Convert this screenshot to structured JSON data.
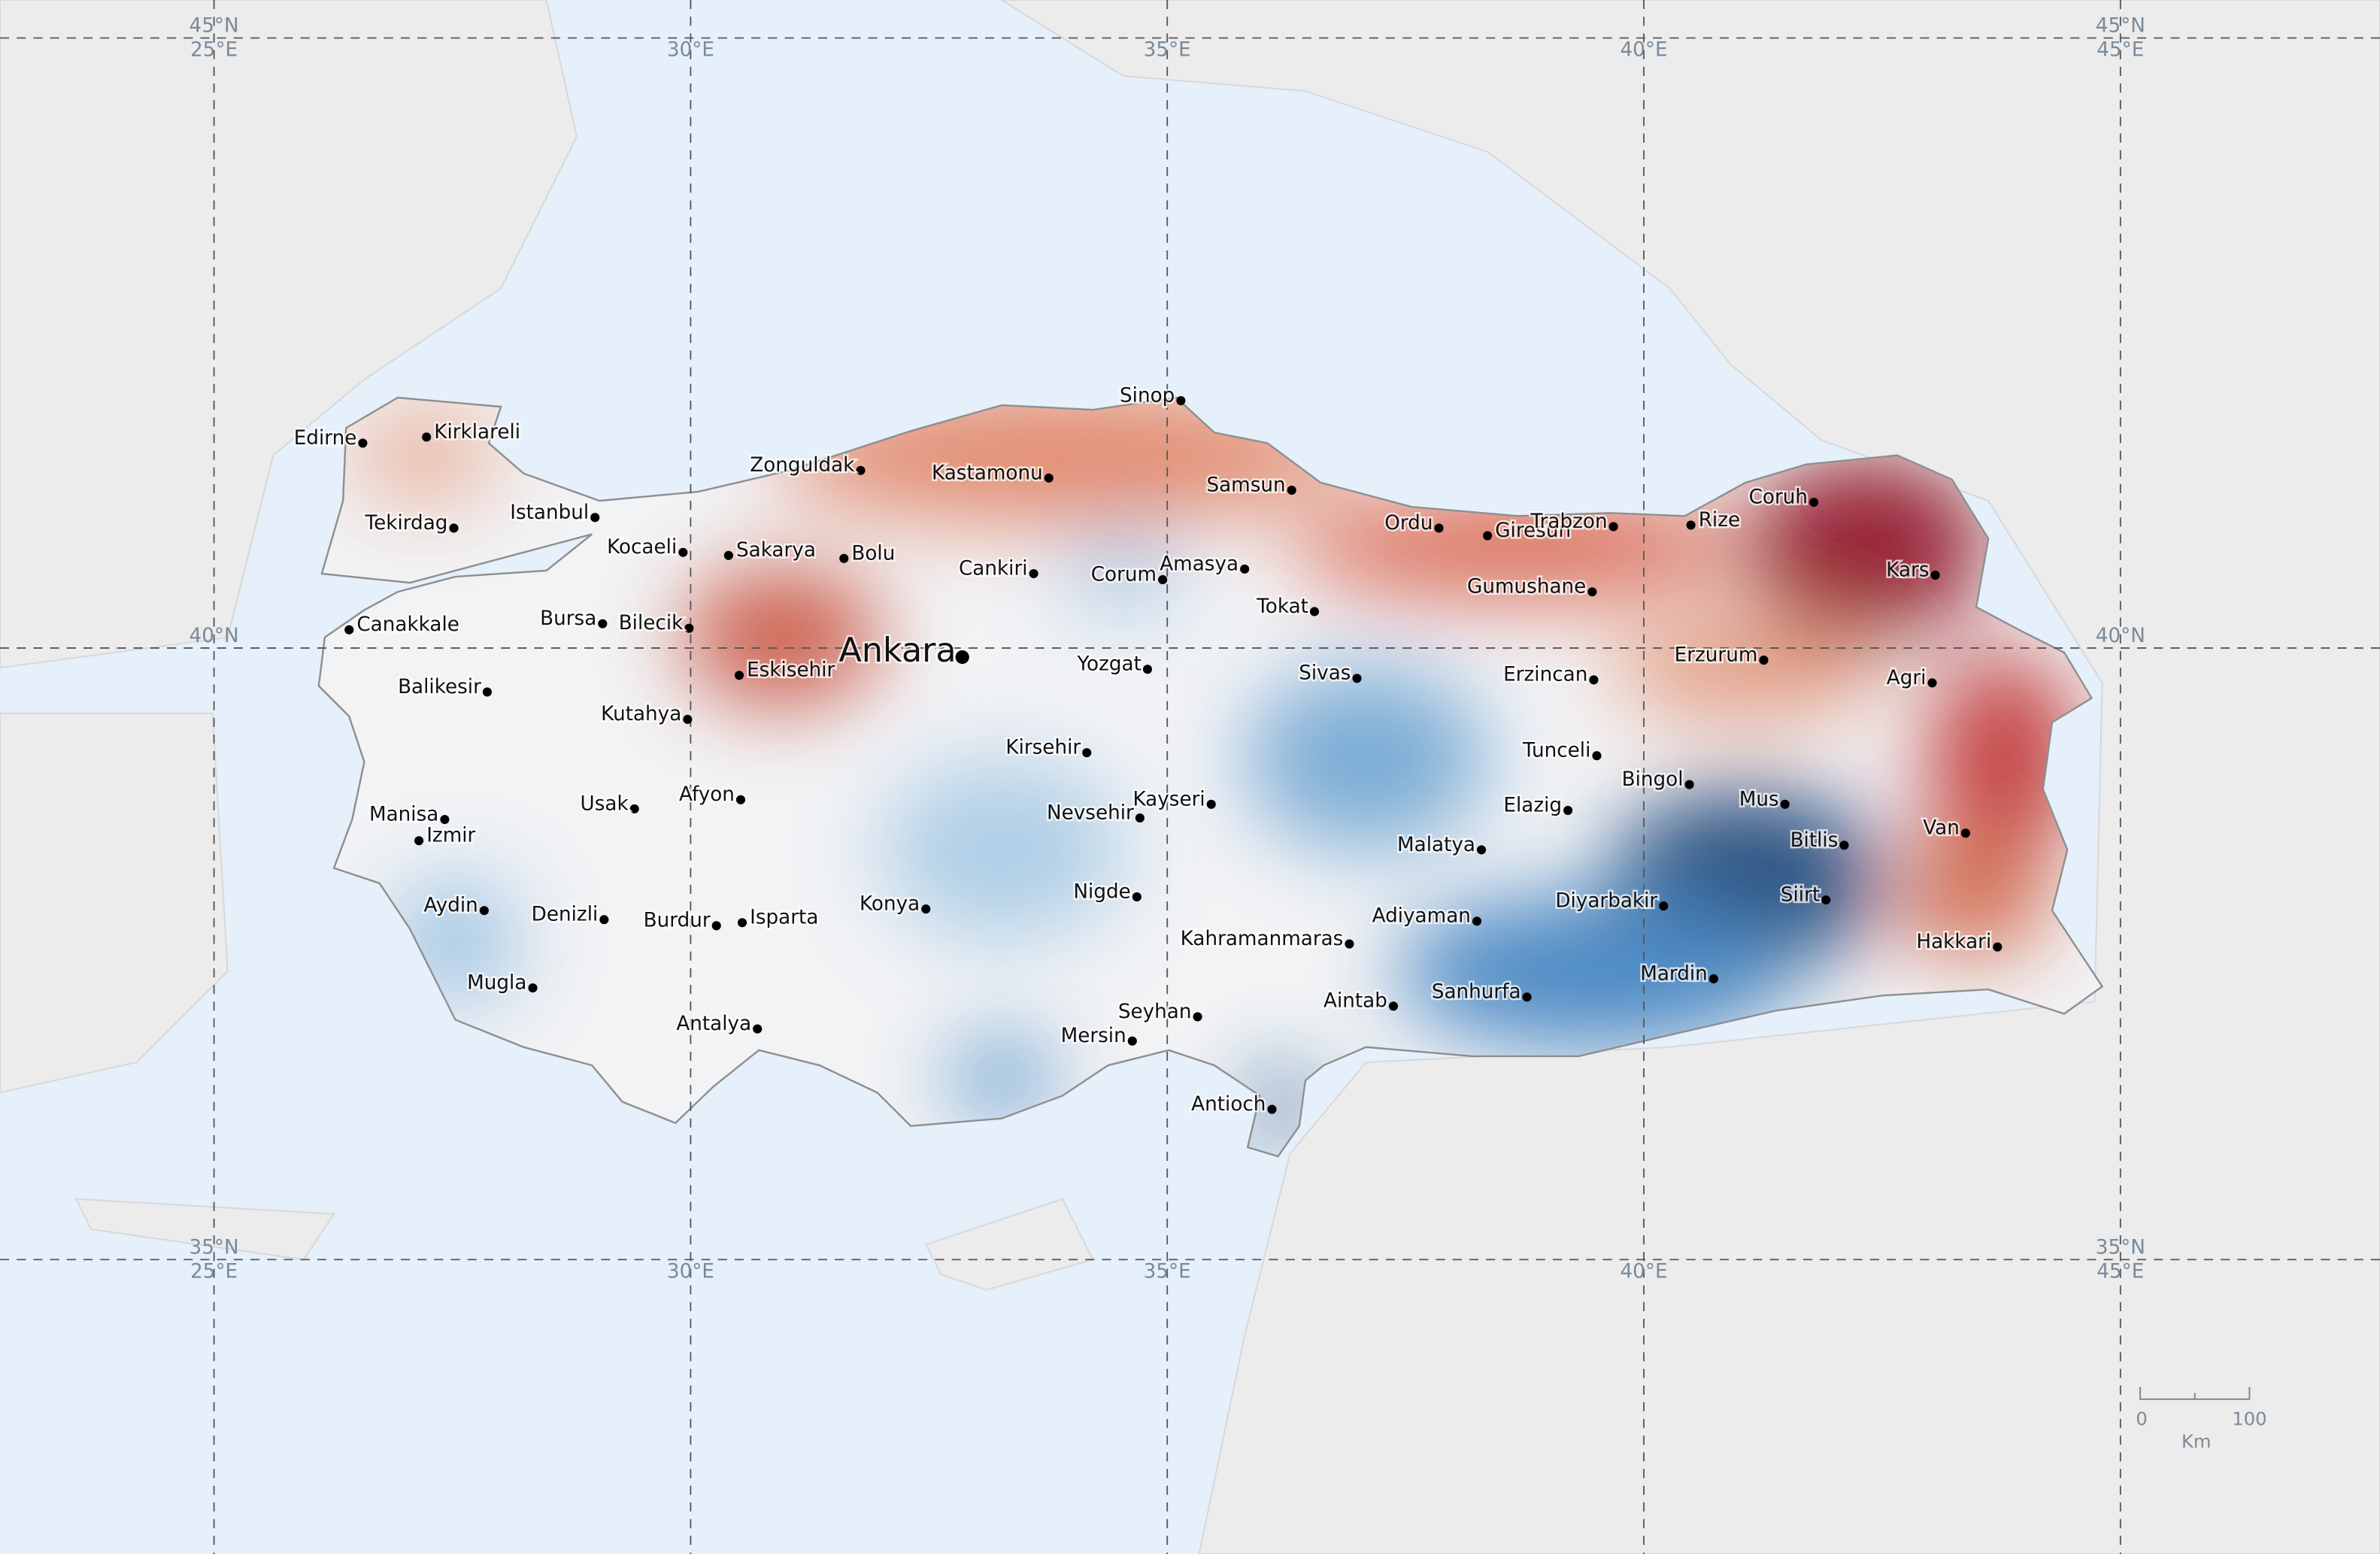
{
  "graticule": {
    "lon_labels": [
      "25°E",
      "30°E",
      "35°E",
      "40°E",
      "45°E"
    ],
    "lat_labels": [
      "45°N",
      "40°N",
      "35°N"
    ]
  },
  "cities": [
    "Edirne",
    "Kirklareli",
    "Tekirdag",
    "Istanbul",
    "Kocaeli",
    "Sakarya",
    "Bolu",
    "Zonguldak",
    "Kastamonu",
    "Sinop",
    "Samsun",
    "Ordu",
    "Giresun",
    "Trabzon",
    "Rize",
    "Coruh",
    "Kars",
    "Canakkale",
    "Bursa",
    "Bilecik",
    "Eskisehir",
    "Ankara",
    "Cankiri",
    "Corum",
    "Amasya",
    "Tokat",
    "Gumushane",
    "Erzurum",
    "Agri",
    "Yozgat",
    "Sivas",
    "Erzincan",
    "Balikesir",
    "Kutahya",
    "Kirsehir",
    "Tunceli",
    "Bingol",
    "Mus",
    "Bitlis",
    "Van",
    "Manisa",
    "Izmir",
    "Usak",
    "Afyon",
    "Kayseri",
    "Nevsehir",
    "Elazig",
    "Malatya",
    "Aydin",
    "Denizli",
    "Burdur",
    "Isparta",
    "Konya",
    "Nigde",
    "Kahramanmaras",
    "Adiyaman",
    "Diyarbakir",
    "Siirt",
    "Hakkari",
    "Mardin",
    "Mugla",
    "Antalya",
    "Seyhan",
    "Mersin",
    "Aintab",
    "Sanhurfa",
    "Antioch"
  ],
  "scale_bar": {
    "start": "0",
    "end": "100",
    "unit": "Km"
  }
}
